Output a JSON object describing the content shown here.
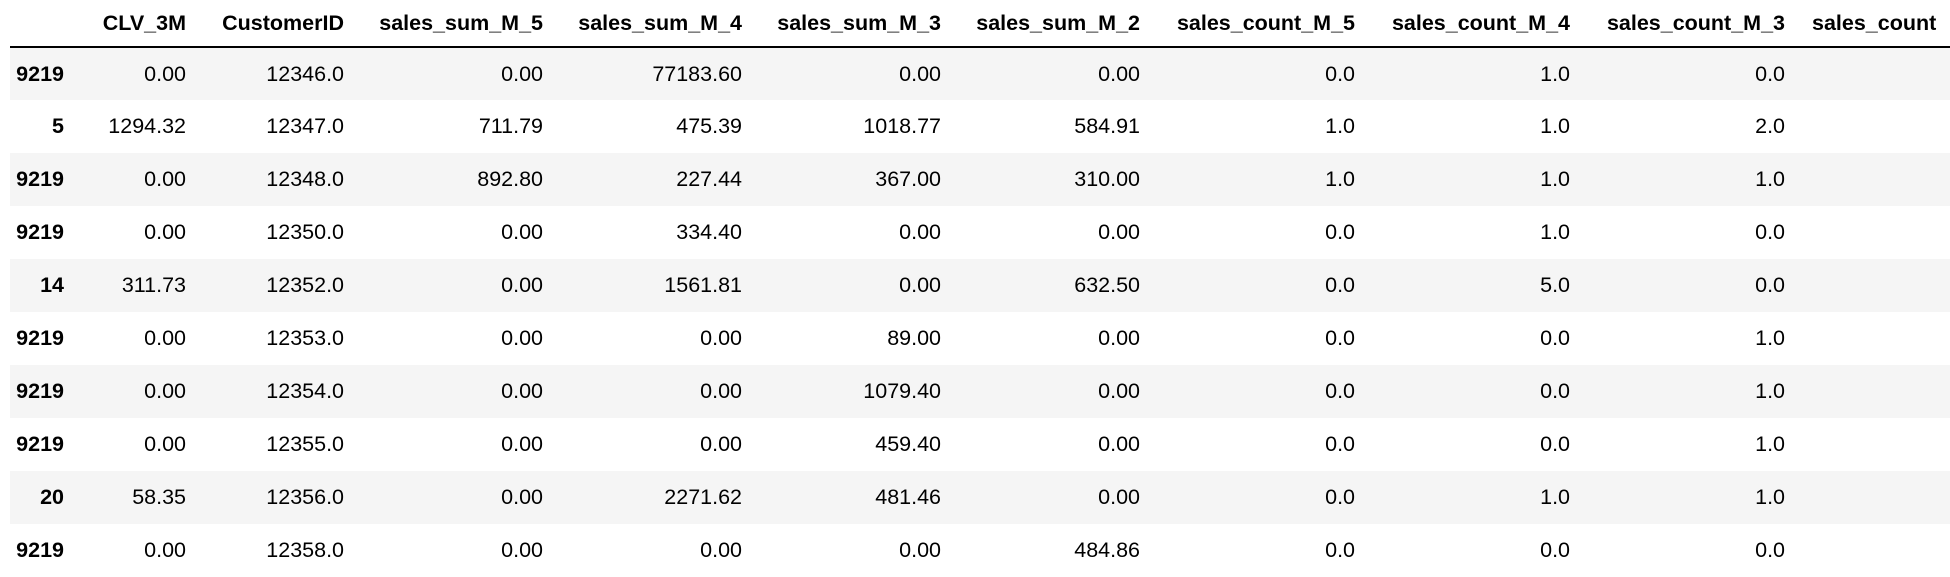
{
  "table": {
    "columns": [
      "",
      "CLV_3M",
      "CustomerID",
      "sales_sum_M_5",
      "sales_sum_M_4",
      "sales_sum_M_3",
      "sales_sum_M_2",
      "sales_count_M_5",
      "sales_count_M_4",
      "sales_count_M_3",
      "sales_count"
    ],
    "rows": [
      {
        "index": "9219",
        "cells": [
          "0.00",
          "12346.0",
          "0.00",
          "77183.60",
          "0.00",
          "0.00",
          "0.0",
          "1.0",
          "0.0",
          ""
        ]
      },
      {
        "index": "5",
        "cells": [
          "1294.32",
          "12347.0",
          "711.79",
          "475.39",
          "1018.77",
          "584.91",
          "1.0",
          "1.0",
          "2.0",
          ""
        ]
      },
      {
        "index": "9219",
        "cells": [
          "0.00",
          "12348.0",
          "892.80",
          "227.44",
          "367.00",
          "310.00",
          "1.0",
          "1.0",
          "1.0",
          ""
        ]
      },
      {
        "index": "9219",
        "cells": [
          "0.00",
          "12350.0",
          "0.00",
          "334.40",
          "0.00",
          "0.00",
          "0.0",
          "1.0",
          "0.0",
          ""
        ]
      },
      {
        "index": "14",
        "cells": [
          "311.73",
          "12352.0",
          "0.00",
          "1561.81",
          "0.00",
          "632.50",
          "0.0",
          "5.0",
          "0.0",
          ""
        ]
      },
      {
        "index": "9219",
        "cells": [
          "0.00",
          "12353.0",
          "0.00",
          "0.00",
          "89.00",
          "0.00",
          "0.0",
          "0.0",
          "1.0",
          ""
        ]
      },
      {
        "index": "9219",
        "cells": [
          "0.00",
          "12354.0",
          "0.00",
          "0.00",
          "1079.40",
          "0.00",
          "0.0",
          "0.0",
          "1.0",
          ""
        ]
      },
      {
        "index": "9219",
        "cells": [
          "0.00",
          "12355.0",
          "0.00",
          "0.00",
          "459.40",
          "0.00",
          "0.0",
          "0.0",
          "1.0",
          ""
        ]
      },
      {
        "index": "20",
        "cells": [
          "58.35",
          "12356.0",
          "0.00",
          "2271.62",
          "481.46",
          "0.00",
          "0.0",
          "1.0",
          "1.0",
          ""
        ]
      },
      {
        "index": "9219",
        "cells": [
          "0.00",
          "12358.0",
          "0.00",
          "0.00",
          "0.00",
          "484.86",
          "0.0",
          "0.0",
          "0.0",
          ""
        ]
      }
    ]
  }
}
